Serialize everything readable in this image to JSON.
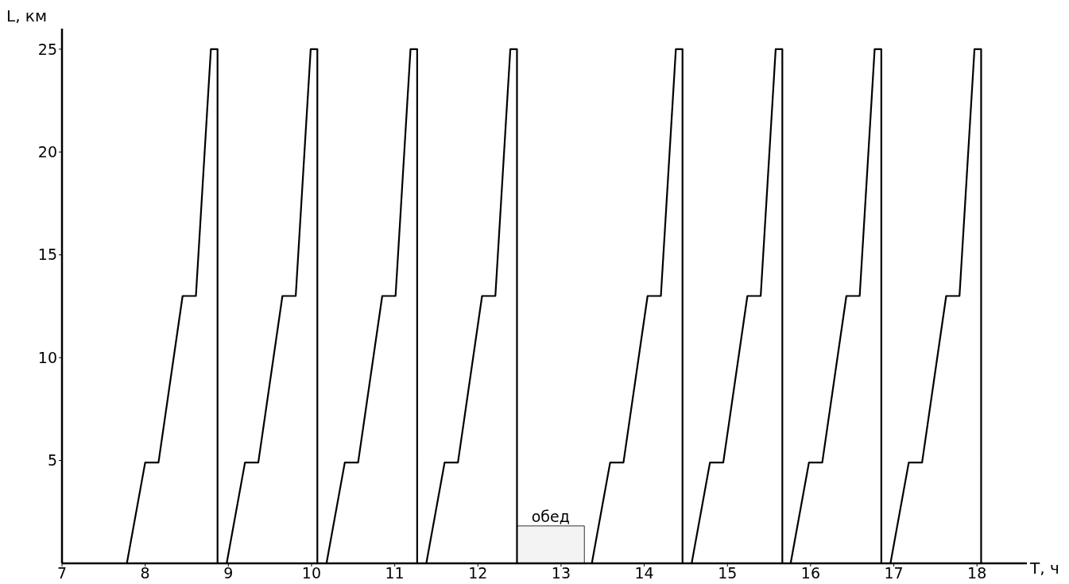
{
  "chart_data": {
    "type": "line",
    "xlabel": "T, ч",
    "ylabel": "L, км",
    "marker": "none",
    "line_style": "solid",
    "grid": false,
    "legend": false,
    "xlim": [
      7,
      18.6
    ],
    "xticks": [
      7,
      8,
      9,
      10,
      11,
      12,
      13,
      14,
      15,
      16,
      17,
      18
    ],
    "ylim": [
      0,
      26
    ],
    "yticks": [
      5,
      10,
      15,
      20,
      25
    ],
    "bands": [
      {
        "axis": "x",
        "from": 12.47,
        "to": 13.28,
        "label": "обед",
        "color": "#333333"
      }
    ],
    "series": [
      {
        "color": "#000000",
        "x": [
          7.69,
          7.78,
          8.0,
          8.16,
          8.45,
          8.61,
          8.79,
          8.87,
          8.87,
          8.89,
          8.98,
          9.2,
          9.36,
          9.65,
          9.81,
          9.99,
          10.07,
          10.07,
          10.09,
          10.18,
          10.4,
          10.56,
          10.85,
          11.01,
          11.19,
          11.27,
          11.27,
          11.29,
          11.38,
          11.6,
          11.76,
          12.05,
          12.21,
          12.39,
          12.47,
          12.47,
          null,
          13.28,
          13.37,
          13.59,
          13.75,
          14.04,
          14.2,
          14.38,
          14.46,
          14.46,
          14.48,
          14.57,
          14.79,
          14.95,
          15.24,
          15.4,
          15.58,
          15.66,
          15.66,
          15.67,
          15.76,
          15.98,
          16.14,
          16.43,
          16.59,
          16.77,
          16.85,
          16.85,
          16.87,
          16.96,
          17.18,
          17.34,
          17.63,
          17.79,
          17.97,
          18.05,
          18.05
        ],
        "values": [
          0,
          0,
          4.9,
          4.9,
          13,
          13,
          25,
          25,
          0,
          0,
          0,
          4.9,
          4.9,
          13,
          13,
          25,
          25,
          0,
          0,
          0,
          4.9,
          4.9,
          13,
          13,
          25,
          25,
          0,
          0,
          0,
          4.9,
          4.9,
          13,
          13,
          25,
          25,
          0,
          null,
          0,
          0,
          4.9,
          4.9,
          13,
          13,
          25,
          25,
          0,
          0,
          0,
          4.9,
          4.9,
          13,
          13,
          25,
          25,
          0,
          0,
          0,
          4.9,
          4.9,
          13,
          13,
          25,
          25,
          0,
          0,
          0,
          4.9,
          4.9,
          13,
          13,
          25,
          25,
          0
        ]
      }
    ]
  }
}
